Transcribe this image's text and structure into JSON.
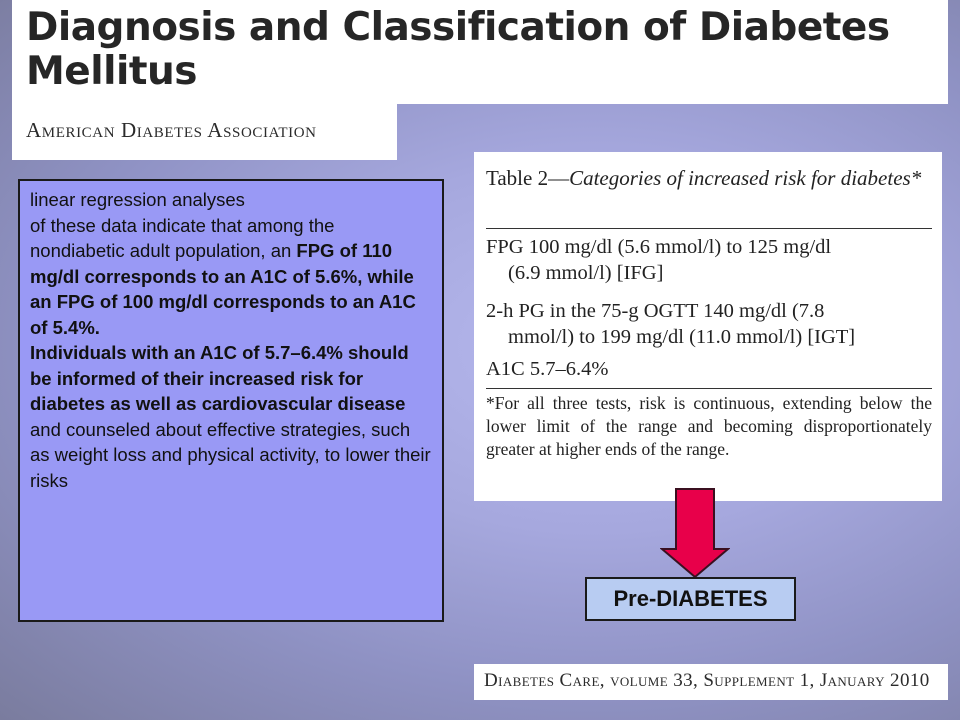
{
  "title": "Diagnosis and Classification of Diabetes Mellitus",
  "association": "American Diabetes Association",
  "left_text": {
    "p1": "linear regression analyses",
    "p2_a": "of these data indicate that among the nondiabetic adult population, an ",
    "p2_bold": "FPG of 110 mg/dl corresponds to an A1C of 5.6%, while an FPG of 100 mg/dl corresponds to an A1C of 5.4%.",
    "p3_bold": "Individuals with an A1C of 5.7–6.4% should be informed of their increased risk for diabetes as well as cardiovascular disease",
    "p3_tail": " and counseled about effective strategies, such as weight loss and physical activity, to lower their risks"
  },
  "table": {
    "label": "Table 2—",
    "title_italic": "Categories of increased risk for diabetes*",
    "rows": [
      {
        "first": "FPG 100 mg/dl (5.6 mmol/l) to 125 mg/dl",
        "cont": "(6.9 mmol/l) [IFG]"
      },
      {
        "first": "2-h PG in the 75-g OGTT 140 mg/dl (7.8",
        "cont": "mmol/l) to 199 mg/dl (11.0 mmol/l) [IGT]"
      },
      {
        "first": "A1C 5.7–6.4%",
        "cont": ""
      }
    ],
    "footnote": "*For all three tests, risk is continuous, extending below the lower limit of the range and becoming disproportionately greater at higher ends of the range."
  },
  "prediabetes_label": "Pre-DIABETES",
  "citation": "Diabetes Care, volume 33, Supplement 1, January 2010",
  "colors": {
    "arrow_fill": "#e8004a",
    "left_box_bg": "#9999f5",
    "label_box_bg": "#b8ccf2"
  }
}
